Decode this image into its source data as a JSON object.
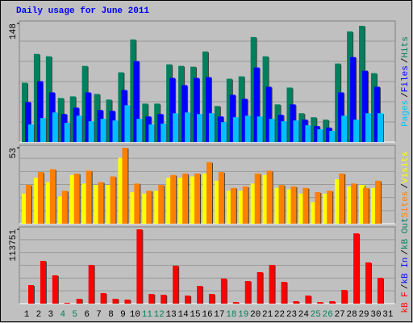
{
  "chart_data": [
    {
      "type": "bar",
      "title": "Daily usage for June 2011",
      "title_color": "#0000ff",
      "ylim": [
        0,
        148
      ],
      "yticks": [
        148
      ],
      "legend_separator": "/",
      "series": [
        {
          "name": "Hits",
          "color": "#00805c",
          "values": [
            74,
            110,
            107,
            55,
            57,
            95,
            60,
            53,
            87,
            128,
            48,
            48,
            97,
            95,
            94,
            113,
            45,
            79,
            82,
            131,
            107,
            47,
            68,
            36,
            31,
            28,
            98,
            138,
            145,
            86,
            null
          ]
        },
        {
          "name": "Files",
          "color": "#0000ff",
          "values": [
            50,
            76,
            62,
            35,
            43,
            62,
            40,
            39,
            65,
            101,
            32,
            35,
            80,
            71,
            80,
            81,
            32,
            59,
            54,
            93,
            69,
            34,
            47,
            28,
            20,
            18,
            62,
            106,
            89,
            69,
            null
          ]
        },
        {
          "name": "Pages",
          "color": "#00c0ff",
          "values": [
            22,
            30,
            37,
            24,
            33,
            26,
            29,
            27,
            46,
            29,
            22,
            23,
            36,
            37,
            35,
            36,
            25,
            31,
            33,
            32,
            29,
            26,
            27,
            21,
            16,
            14,
            33,
            28,
            36,
            36,
            null
          ]
        }
      ]
    },
    {
      "type": "bar",
      "ylim": [
        0,
        53
      ],
      "yticks": [
        53
      ],
      "legend_separator": "/",
      "series": [
        {
          "name": "Visits",
          "color": "#ffff00",
          "values": [
            21,
            32,
            29,
            19,
            34,
            28,
            27,
            27,
            46,
            22,
            21,
            23,
            32,
            32,
            33,
            35,
            30,
            23,
            23,
            28,
            34,
            25,
            24,
            21,
            15,
            21,
            31,
            26,
            27,
            25,
            null
          ]
        },
        {
          "name": "Sites",
          "color": "#ff8000",
          "values": [
            27,
            36,
            38,
            23,
            35,
            37,
            29,
            33,
            53,
            28,
            23,
            27,
            34,
            35,
            35,
            43,
            36,
            25,
            26,
            35,
            37,
            27,
            26,
            25,
            22,
            23,
            35,
            28,
            25,
            30,
            null
          ]
        }
      ]
    },
    {
      "type": "bar",
      "ylim": [
        0,
        113751
      ],
      "yticks": [
        113751
      ],
      "legend_separator": "/",
      "categories": [
        "1",
        "2",
        "3",
        "4",
        "5",
        "6",
        "7",
        "8",
        "9",
        "10",
        "11",
        "12",
        "13",
        "14",
        "15",
        "16",
        "17",
        "18",
        "19",
        "20",
        "21",
        "22",
        "23",
        "24",
        "25",
        "26",
        "27",
        "28",
        "29",
        "30",
        "31"
      ],
      "category_colors": [
        "#000000",
        "#000000",
        "#000000",
        "#00805c",
        "#00805c",
        "#000000",
        "#000000",
        "#000000",
        "#000000",
        "#000000",
        "#00805c",
        "#00805c",
        "#000000",
        "#000000",
        "#000000",
        "#000000",
        "#000000",
        "#00805c",
        "#00805c",
        "#000000",
        "#000000",
        "#000000",
        "#000000",
        "#000000",
        "#00805c",
        "#00805c",
        "#000000",
        "#000000",
        "#000000",
        "#000000",
        "#000000"
      ],
      "series": [
        {
          "name": "kB Out",
          "color": "#00805c",
          "values": [
            0,
            0,
            0,
            0,
            0,
            0,
            0,
            0,
            0,
            0,
            0,
            0,
            0,
            0,
            0,
            0,
            0,
            0,
            0,
            0,
            0,
            0,
            0,
            0,
            0,
            0,
            0,
            0,
            0,
            0,
            null
          ]
        },
        {
          "name": "kB In",
          "color": "#0000ff",
          "values": [
            0,
            0,
            0,
            0,
            0,
            0,
            0,
            0,
            0,
            0,
            0,
            0,
            0,
            0,
            0,
            0,
            0,
            0,
            0,
            0,
            0,
            0,
            0,
            0,
            0,
            0,
            0,
            0,
            0,
            0,
            null
          ]
        },
        {
          "name": "kB F",
          "color": "#ff0000",
          "values": [
            28438,
            65530,
            43275,
            1236,
            7418,
            59348,
            16073,
            7418,
            6182,
            113751,
            14837,
            13600,
            58111,
            12364,
            27201,
            14837,
            38329,
            2473,
            34620,
            48220,
            59348,
            33384,
            3709,
            12364,
            2473,
            3709,
            21019,
            107568,
            63057,
            39566,
            null
          ]
        }
      ]
    }
  ]
}
